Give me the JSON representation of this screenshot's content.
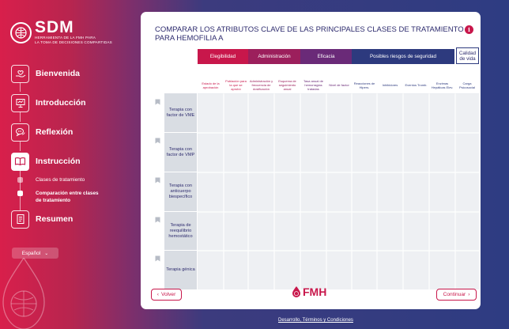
{
  "brand": {
    "title": "SDM",
    "subtitle": "HERRAMIENTA DE LA FMH PARA",
    "subtitle2": "LA TOMA DE DECISIONES COMPARTIDAS"
  },
  "nav": [
    {
      "label": "Bienvenida",
      "icon": "hand-heart-icon"
    },
    {
      "label": "Introducción",
      "icon": "presentation-icon"
    },
    {
      "label": "Reflexión",
      "icon": "speech-bubbles-icon"
    },
    {
      "label": "Instrucción",
      "icon": "open-book-icon",
      "active": true
    },
    {
      "label": "Resumen",
      "icon": "document-list-icon"
    }
  ],
  "subnav": [
    {
      "label": "Clases de tratamiento"
    },
    {
      "label": "Comparación entre clases de tratamiento",
      "active": true
    }
  ],
  "language": {
    "label": "Español"
  },
  "page": {
    "title": "COMPARAR LOS ATRIBUTOS CLAVE DE LAS PRINCIPALES CLASES DE TRATAMIENTO PARA HEMOFILIA A",
    "info": "i"
  },
  "groups": [
    {
      "label": "Elegibilidad",
      "color": "#c8174b"
    },
    {
      "label": "Administración",
      "color": "#9c1f5c"
    },
    {
      "label": "Eficacia",
      "color": "#6a2a78"
    },
    {
      "label": "Posibles riesgos de seguridad",
      "color": "#2d3a7e"
    },
    {
      "label": "Calidad de vida",
      "color": "#27357a"
    }
  ],
  "columns": [
    "Estado de la aprobación",
    "Población para la que se aprobó",
    "Administración y frecuencia de dosificación",
    "Esquema de seguimiento anual",
    "Tasa anual de hemorragias tratadas",
    "Nivel de factor",
    "Reacciones de Hipers.",
    "Inhibidores",
    "Eventos Tromb.",
    "Enzimas Hepáticas Elev.",
    "Carga Psicosocial"
  ],
  "rows": [
    "Terapia con factor de VME",
    "Terapia con factor de VMP",
    "Terapia con anticuerpo biespecífico",
    "Terapia de reequilibrio hemostático",
    "Terapia génica"
  ],
  "buttons": {
    "back": "Volver",
    "next": "Continuar"
  },
  "footer_logo": "FMH",
  "footer_links": "Desarrollo, Términos y Condiciones"
}
